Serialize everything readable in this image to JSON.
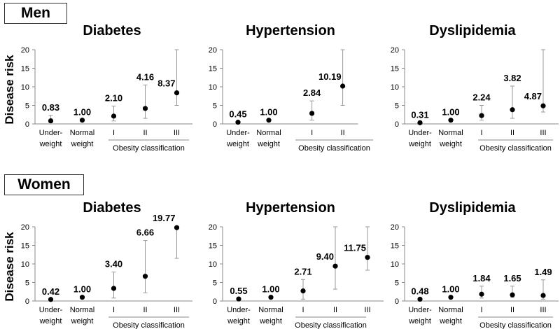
{
  "panel_groups": [
    {
      "label": "Men",
      "ylabel": "Disease risk"
    },
    {
      "label": "Women",
      "ylabel": "Disease risk"
    }
  ],
  "chart_data": [
    {
      "type": "scatter",
      "group": "Men",
      "title": "Diabetes",
      "categories": [
        "Under-\nweight",
        "Normal\nweight",
        "I",
        "II",
        "III"
      ],
      "bracket_label": "Obesity classification",
      "values": [
        0.83,
        1.0,
        2.1,
        4.16,
        8.37
      ],
      "labels": [
        "0.83",
        "1.00",
        "2.10",
        "4.16",
        "8.37"
      ],
      "ci": [
        [
          0.3,
          2.3
        ],
        null,
        [
          0.8,
          4.8
        ],
        [
          1.5,
          10.5
        ],
        [
          5.0,
          20.0
        ]
      ],
      "ylim": [
        0,
        20
      ],
      "yticks": [
        0,
        5,
        10,
        15,
        20
      ]
    },
    {
      "type": "scatter",
      "group": "Men",
      "title": "Hypertension",
      "categories": [
        "Under-\nweight",
        "Normal\nweight",
        "I",
        "II"
      ],
      "bracket_label": "Obesity classification",
      "values": [
        0.45,
        1.0,
        2.84,
        10.19
      ],
      "labels": [
        "0.45",
        "1.00",
        "2.84",
        "10.19"
      ],
      "ci": [
        null,
        null,
        [
          1.0,
          6.2
        ],
        [
          5.0,
          20.0
        ]
      ],
      "ylim": [
        0,
        20
      ],
      "yticks": [
        0,
        5,
        10,
        15,
        20
      ]
    },
    {
      "type": "scatter",
      "group": "Men",
      "title": "Dyslipidemia",
      "categories": [
        "Under-\nweight",
        "Normal\nweight",
        "I",
        "II",
        "III"
      ],
      "bracket_label": "Obesity classification",
      "values": [
        0.31,
        1.0,
        2.24,
        3.82,
        4.87
      ],
      "labels": [
        "0.31",
        "1.00",
        "2.24",
        "3.82",
        "4.87"
      ],
      "ci": [
        null,
        null,
        [
          1.0,
          5.0
        ],
        [
          1.5,
          10.2
        ],
        [
          3.2,
          20.0
        ]
      ],
      "ylim": [
        0,
        20
      ],
      "yticks": [
        0,
        5,
        10,
        15,
        20
      ]
    },
    {
      "type": "scatter",
      "group": "Women",
      "title": "Diabetes",
      "categories": [
        "Under-\nweight",
        "Normal\nweight",
        "I",
        "II",
        "III"
      ],
      "bracket_label": "Obesity classification",
      "values": [
        0.42,
        1.0,
        3.4,
        6.66,
        19.77
      ],
      "labels": [
        "0.42",
        "1.00",
        "3.40",
        "6.66",
        "19.77"
      ],
      "ci": [
        null,
        null,
        [
          0.8,
          7.8
        ],
        [
          2.2,
          16.3
        ],
        [
          11.5,
          20.0
        ]
      ],
      "ylim": [
        0,
        20
      ],
      "yticks": [
        0,
        5,
        10,
        15,
        20
      ]
    },
    {
      "type": "scatter",
      "group": "Women",
      "title": "Hypertension",
      "categories": [
        "Under-\nweight",
        "Normal\nweight",
        "I",
        "II",
        "III"
      ],
      "bracket_label": "Obesity classification",
      "values": [
        0.55,
        1.0,
        2.71,
        9.4,
        11.75
      ],
      "labels": [
        "0.55",
        "1.00",
        "2.71",
        "9.40",
        "11.75"
      ],
      "ci": [
        null,
        null,
        [
          0.5,
          5.8
        ],
        [
          3.2,
          20.0
        ],
        [
          8.3,
          20.0
        ]
      ],
      "ylim": [
        0,
        20
      ],
      "yticks": [
        0,
        5,
        10,
        15,
        20
      ]
    },
    {
      "type": "scatter",
      "group": "Women",
      "title": "Dyslipidemia",
      "categories": [
        "Under-\nweight",
        "Normal\nweight",
        "I",
        "II",
        "III"
      ],
      "bracket_label": "Obesity classification",
      "values": [
        0.48,
        1.0,
        1.84,
        1.65,
        1.49
      ],
      "labels": [
        "0.48",
        "1.00",
        "1.84",
        "1.65",
        "1.49"
      ],
      "ci": [
        null,
        null,
        [
          0.8,
          4.0
        ],
        [
          1.0,
          4.0
        ],
        [
          0.5,
          5.7
        ]
      ],
      "ylim": [
        0,
        20
      ],
      "yticks": [
        0,
        5,
        10,
        15,
        20
      ]
    }
  ]
}
